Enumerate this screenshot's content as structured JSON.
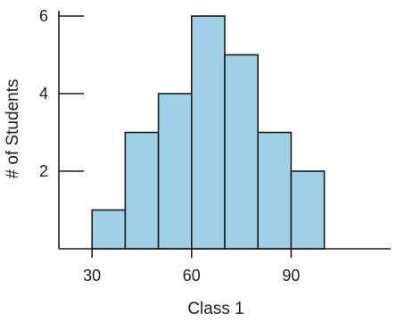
{
  "chart_data": {
    "type": "bar",
    "histogram": true,
    "bins": [
      {
        "start": 30,
        "end": 40,
        "value": 1
      },
      {
        "start": 40,
        "end": 50,
        "value": 3
      },
      {
        "start": 50,
        "end": 60,
        "value": 4
      },
      {
        "start": 60,
        "end": 70,
        "value": 6
      },
      {
        "start": 70,
        "end": 80,
        "value": 5
      },
      {
        "start": 80,
        "end": 90,
        "value": 3
      },
      {
        "start": 90,
        "end": 100,
        "value": 2
      }
    ],
    "xlabel": "Class 1",
    "ylabel": "# of Students",
    "xlim": [
      20,
      120
    ],
    "ylim": [
      0,
      6
    ],
    "xticks": [
      30,
      60,
      90
    ],
    "yticks": [
      2,
      4,
      6
    ],
    "grid": false,
    "bar_color": "#9fd0e6",
    "edge_color": "#1a1a1a"
  }
}
